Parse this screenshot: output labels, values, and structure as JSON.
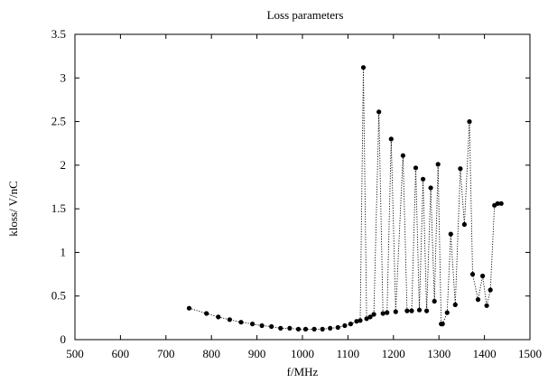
{
  "chart_data": {
    "type": "line",
    "title": "Loss parameters",
    "xlabel": "f/MHz",
    "ylabel": "kloss/ V/nC",
    "xlim": [
      500,
      1500
    ],
    "ylim": [
      0,
      3.5
    ],
    "xticks": [
      500,
      600,
      700,
      800,
      900,
      1000,
      1100,
      1200,
      1300,
      1400,
      1500
    ],
    "yticks": [
      0,
      0.5,
      1,
      1.5,
      2,
      2.5,
      3,
      3.5
    ],
    "xtick_labels": [
      "500",
      "600",
      "700",
      "800",
      "900",
      "1000",
      "1100",
      "1200",
      "1300",
      "1400",
      "1500"
    ],
    "ytick_labels": [
      "0",
      "0.5",
      "1",
      "1.5",
      "2",
      "2.5",
      "3",
      "3.5"
    ],
    "grid": false,
    "legend": "none",
    "line_style": "dotted",
    "marker": "filled-circle",
    "color": "#000000",
    "series": [
      {
        "x": [
          751,
          789,
          815,
          840,
          865,
          890,
          911,
          932,
          952,
          972,
          991,
          1007,
          1026,
          1044,
          1061,
          1078,
          1093,
          1106,
          1119,
          1127,
          1134,
          1141,
          1149,
          1157,
          1168,
          1177,
          1186,
          1195,
          1205,
          1221,
          1230,
          1240,
          1249,
          1257,
          1265,
          1273,
          1282,
          1290,
          1298,
          1305,
          1308,
          1318,
          1326,
          1336,
          1347,
          1356,
          1367,
          1374,
          1386,
          1396,
          1405,
          1413,
          1422,
          1429,
          1437
        ],
        "y": [
          0.36,
          0.3,
          0.26,
          0.23,
          0.2,
          0.18,
          0.16,
          0.15,
          0.13,
          0.13,
          0.12,
          0.12,
          0.12,
          0.12,
          0.13,
          0.14,
          0.16,
          0.18,
          0.21,
          0.22,
          3.12,
          0.24,
          0.26,
          0.29,
          2.61,
          0.3,
          0.31,
          2.3,
          0.32,
          2.11,
          0.33,
          0.33,
          1.97,
          0.34,
          1.84,
          0.33,
          1.74,
          0.44,
          2.01,
          0.18,
          0.18,
          0.31,
          1.21,
          0.4,
          1.96,
          1.32,
          2.5,
          0.75,
          0.46,
          0.73,
          0.39,
          0.57,
          1.54,
          1.56,
          1.56
        ]
      }
    ]
  }
}
